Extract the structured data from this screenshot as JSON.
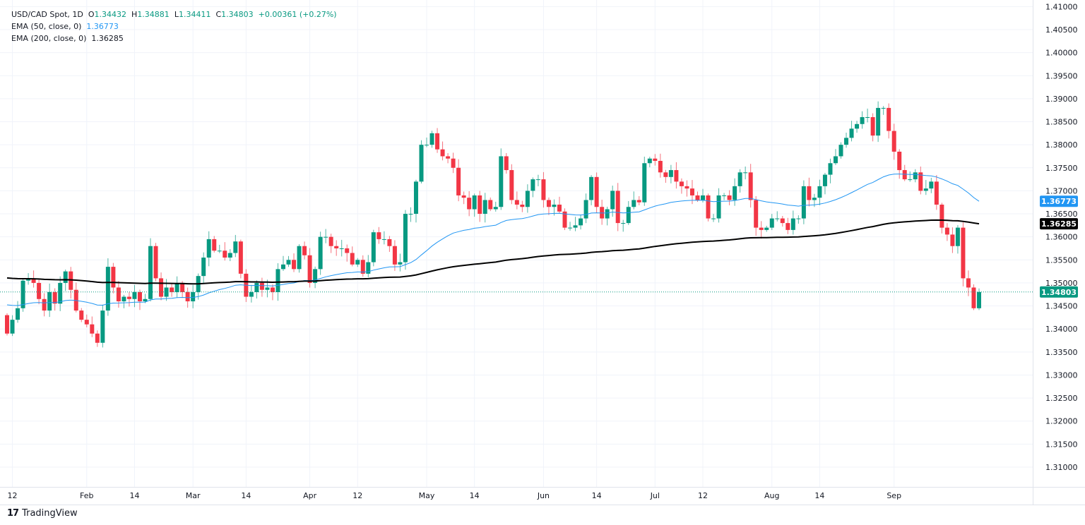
{
  "legend": {
    "symbol": "USD/CAD Spot, 1D",
    "open_label": "O",
    "open": "1.34432",
    "high_label": "H",
    "high": "1.34881",
    "low_label": "L",
    "low": "1.34411",
    "close_label": "C",
    "close": "1.34803",
    "change": "+0.00361 (+0.27%)",
    "ema50_label": "EMA (50, close, 0)",
    "ema50_value": "1.36773",
    "ema200_label": "EMA (200, close, 0)",
    "ema200_value": "1.36285"
  },
  "branding": {
    "name": "TradingView"
  },
  "colors": {
    "up": "#089981",
    "down": "#f23645",
    "ema50": "#2196f3",
    "ema200": "#000000",
    "grid": "#f0f3fa"
  },
  "chart_data": {
    "type": "candlestick",
    "title": "USD/CAD Spot, 1D",
    "ylim": [
      1.305,
      1.41
    ],
    "y_ticks": [
      "1.31000",
      "1.31500",
      "1.32000",
      "1.32500",
      "1.33000",
      "1.33500",
      "1.34000",
      "1.34500",
      "1.35000",
      "1.35500",
      "1.36000",
      "1.36500",
      "1.37000",
      "1.37500",
      "1.38000",
      "1.38500",
      "1.39000",
      "1.39500",
      "1.40000",
      "1.40500",
      "1.41000"
    ],
    "x_ticks": [
      {
        "label": "12",
        "index": 1
      },
      {
        "label": "Feb",
        "index": 15
      },
      {
        "label": "14",
        "index": 24
      },
      {
        "label": "Mar",
        "index": 35
      },
      {
        "label": "14",
        "index": 45
      },
      {
        "label": "Apr",
        "index": 57
      },
      {
        "label": "12",
        "index": 66
      },
      {
        "label": "May",
        "index": 79
      },
      {
        "label": "14",
        "index": 88
      },
      {
        "label": "Jun",
        "index": 101
      },
      {
        "label": "14",
        "index": 111
      },
      {
        "label": "Jul",
        "index": 122
      },
      {
        "label": "12",
        "index": 131
      },
      {
        "label": "Aug",
        "index": 144
      },
      {
        "label": "14",
        "index": 153
      },
      {
        "label": "Sep",
        "index": 167
      }
    ],
    "first_open": 1.343,
    "closes": [
      1.339,
      1.342,
      1.3445,
      1.3505,
      1.351,
      1.35,
      1.3465,
      1.344,
      1.348,
      1.3455,
      1.35,
      1.3525,
      1.3485,
      1.344,
      1.342,
      1.341,
      1.339,
      1.337,
      1.344,
      1.3535,
      1.349,
      1.346,
      1.347,
      1.3465,
      1.348,
      1.346,
      1.3465,
      1.358,
      1.351,
      1.347,
      1.349,
      1.348,
      1.35,
      1.348,
      1.346,
      1.348,
      1.3515,
      1.3555,
      1.3595,
      1.357,
      1.357,
      1.3555,
      1.3565,
      1.359,
      1.352,
      1.347,
      1.348,
      1.35,
      1.3485,
      1.349,
      1.348,
      1.353,
      1.354,
      1.355,
      1.353,
      1.358,
      1.356,
      1.35,
      1.353,
      1.36,
      1.36,
      1.358,
      1.3575,
      1.3575,
      1.3565,
      1.354,
      1.355,
      1.352,
      1.3545,
      1.361,
      1.3595,
      1.3595,
      1.358,
      1.354,
      1.3545,
      1.365,
      1.365,
      1.372,
      1.38,
      1.38,
      1.3825,
      1.379,
      1.3775,
      1.377,
      1.375,
      1.369,
      1.3685,
      1.366,
      1.369,
      1.365,
      1.368,
      1.366,
      1.3665,
      1.3775,
      1.3745,
      1.368,
      1.367,
      1.3665,
      1.37,
      1.3725,
      1.3725,
      1.368,
      1.3665,
      1.367,
      1.3655,
      1.362,
      1.362,
      1.3625,
      1.364,
      1.368,
      1.373,
      1.3665,
      1.364,
      1.366,
      1.37,
      1.363,
      1.363,
      1.3665,
      1.368,
      1.3675,
      1.376,
      1.377,
      1.3765,
      1.374,
      1.373,
      1.3745,
      1.372,
      1.371,
      1.3705,
      1.369,
      1.368,
      1.369,
      1.364,
      1.364,
      1.369,
      1.369,
      1.368,
      1.371,
      1.374,
      1.374,
      1.368,
      1.362,
      1.3615,
      1.362,
      1.364,
      1.364,
      1.363,
      1.3615,
      1.364,
      1.364,
      1.371,
      1.368,
      1.3685,
      1.371,
      1.3735,
      1.376,
      1.3775,
      1.38,
      1.3815,
      1.3835,
      1.3845,
      1.386,
      1.386,
      1.382,
      1.388,
      1.388,
      1.383,
      1.3785,
      1.3745,
      1.3725,
      1.3725,
      1.374,
      1.37,
      1.3705,
      1.372,
      1.367,
      1.362,
      1.3605,
      1.358,
      1.362,
      1.351,
      1.349,
      1.3445,
      1.34803
    ],
    "ema50_seed": 1.3455,
    "ema200_seed": 1.3512,
    "last_price": 1.34803,
    "ema50_last": 1.36773,
    "ema200_last": 1.36285,
    "price_labels": {
      "ema50": "1.36773",
      "ema200": "1.36285",
      "last": "1.34803"
    }
  }
}
